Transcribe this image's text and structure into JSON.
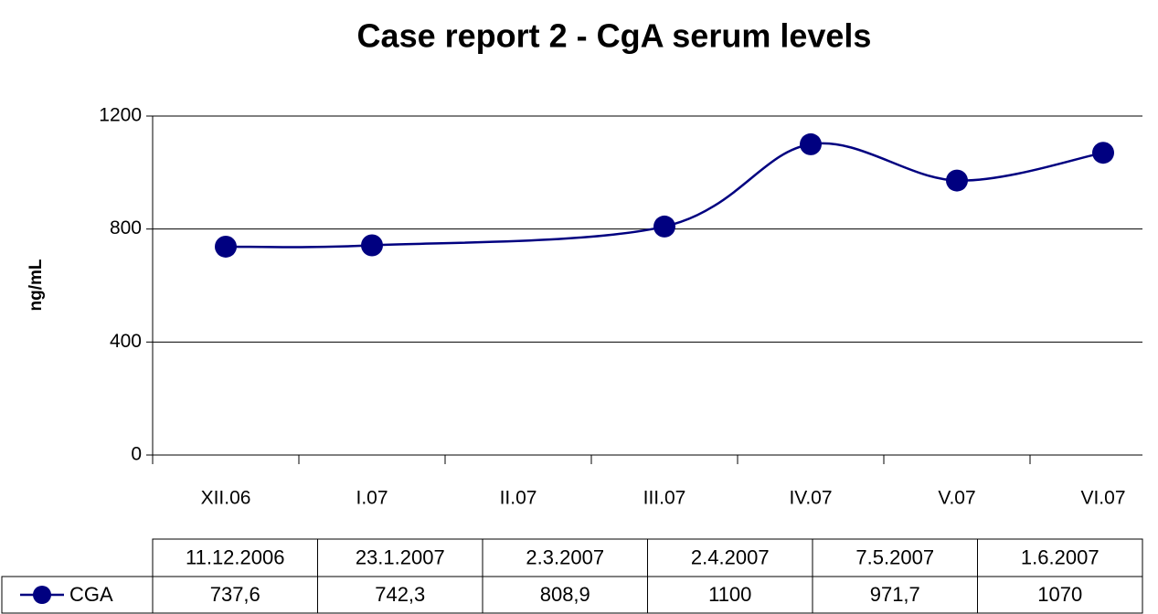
{
  "chart_data": {
    "type": "line",
    "title": "Case report 2 - CgA serum levels",
    "y_label": "ng/mL",
    "categories": [
      "XII.06",
      "I.07",
      "II.07",
      "III.07",
      "IV.07",
      "V.07",
      "VI.07"
    ],
    "x": [
      "11.12.2006",
      "23.1.2007",
      "2.3.2007",
      "2.4.2007",
      "7.5.2007",
      "1.6.2007"
    ],
    "series": [
      {
        "name": "CGA",
        "color": "#000080",
        "values": [
          737.6,
          742.3,
          808.9,
          1100,
          971.7,
          1070
        ],
        "value_labels": [
          "737,6",
          "742,3",
          "808,9",
          "1100",
          "971,7",
          "1070"
        ]
      }
    ],
    "ylim": [
      0,
      1200
    ],
    "yticks": [
      0,
      400,
      800,
      1200
    ],
    "grid": true
  }
}
